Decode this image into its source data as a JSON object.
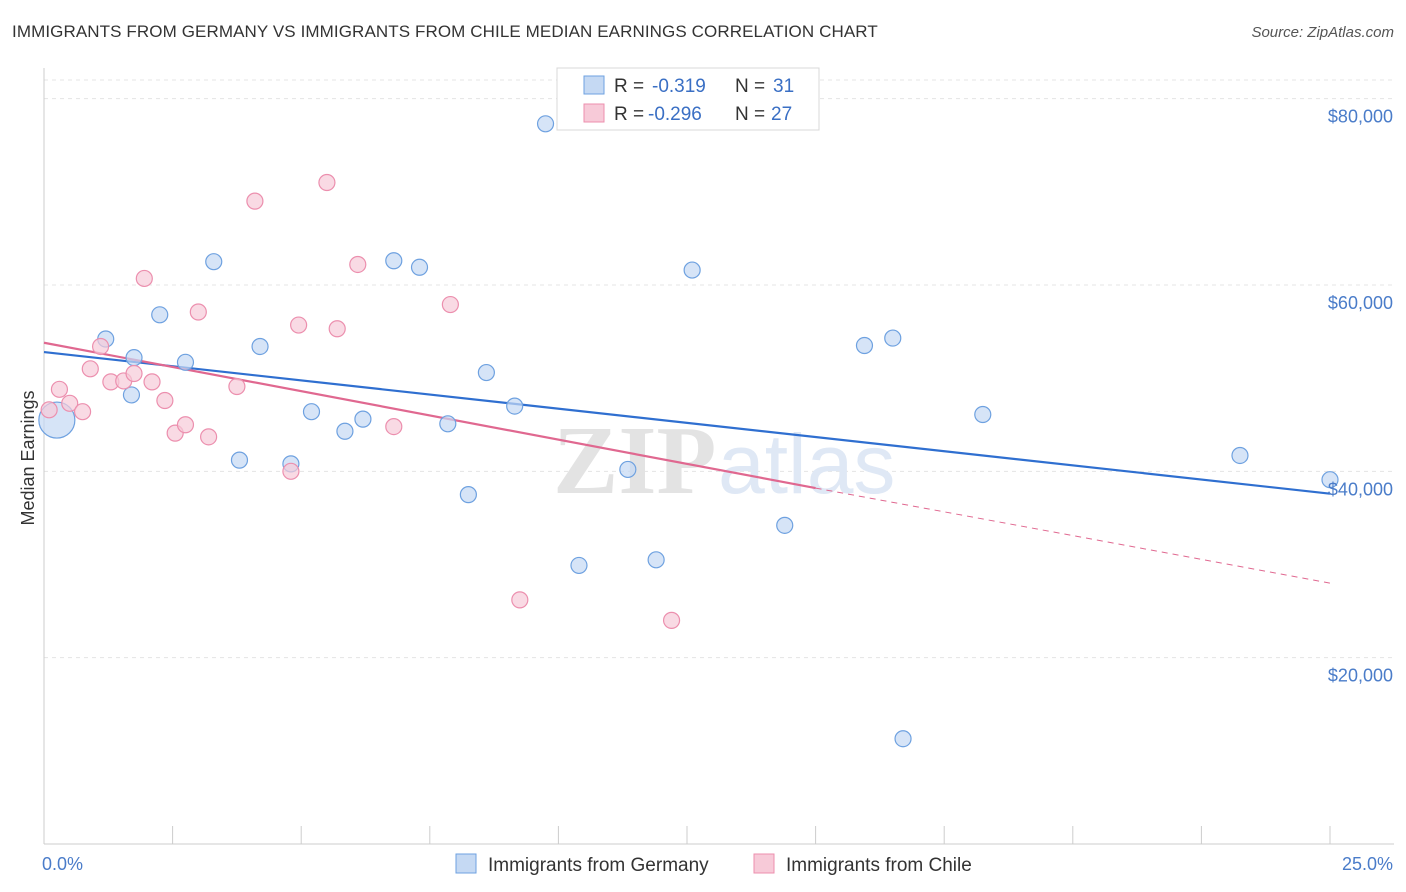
{
  "header": {
    "title": "IMMIGRANTS FROM GERMANY VS IMMIGRANTS FROM CHILE MEDIAN EARNINGS CORRELATION CHART",
    "source": "Source: ZipAtlas.com"
  },
  "watermark": {
    "part1": "ZIP",
    "part2": "atlas"
  },
  "chart_data": {
    "type": "scatter",
    "ylabel": "Median Earnings",
    "xlim": [
      0,
      25
    ],
    "ylim": [
      0,
      82000
    ],
    "x_tick_labels": [
      {
        "value": 0,
        "label": "0.0%"
      },
      {
        "value": 25,
        "label": "25.0%"
      }
    ],
    "x_minor_ticks": [
      0,
      2.5,
      5,
      7.5,
      10,
      12.5,
      15,
      17.5,
      20,
      22.5,
      25
    ],
    "y_ticks": [
      {
        "value": 20000,
        "label": "$20,000"
      },
      {
        "value": 40000,
        "label": "$40,000"
      },
      {
        "value": 60000,
        "label": "$60,000"
      },
      {
        "value": 80000,
        "label": "$80,000"
      }
    ],
    "grid": true,
    "series": [
      {
        "name": "Immigrants from Germany",
        "color": "#6ea1e0",
        "fill": "#c5d9f3",
        "line_color": "#2f6fd0",
        "R": "-0.319",
        "N": "31",
        "trend": {
          "x0": 0,
          "y0": 52800,
          "x1": 25,
          "y1": 37600
        },
        "points": [
          {
            "x": 0.25,
            "y": 45500,
            "big": true
          },
          {
            "x": 1.2,
            "y": 54200
          },
          {
            "x": 1.75,
            "y": 52200
          },
          {
            "x": 1.7,
            "y": 48200
          },
          {
            "x": 2.25,
            "y": 56800
          },
          {
            "x": 2.75,
            "y": 51700
          },
          {
            "x": 3.3,
            "y": 62500
          },
          {
            "x": 3.8,
            "y": 41200
          },
          {
            "x": 4.2,
            "y": 53400
          },
          {
            "x": 4.8,
            "y": 40800
          },
          {
            "x": 5.2,
            "y": 46400
          },
          {
            "x": 5.85,
            "y": 44300
          },
          {
            "x": 6.2,
            "y": 45600
          },
          {
            "x": 6.8,
            "y": 62600
          },
          {
            "x": 7.3,
            "y": 61900
          },
          {
            "x": 7.85,
            "y": 45100
          },
          {
            "x": 8.25,
            "y": 37500
          },
          {
            "x": 8.6,
            "y": 50600
          },
          {
            "x": 9.15,
            "y": 47000
          },
          {
            "x": 9.75,
            "y": 77300
          },
          {
            "x": 10.4,
            "y": 29900
          },
          {
            "x": 11.35,
            "y": 40200
          },
          {
            "x": 11.9,
            "y": 30500
          },
          {
            "x": 12.6,
            "y": 61600
          },
          {
            "x": 14.4,
            "y": 34200
          },
          {
            "x": 15.95,
            "y": 53500
          },
          {
            "x": 16.5,
            "y": 54300
          },
          {
            "x": 16.7,
            "y": 11300
          },
          {
            "x": 18.25,
            "y": 46100
          },
          {
            "x": 23.25,
            "y": 41700
          },
          {
            "x": 25,
            "y": 39100
          }
        ]
      },
      {
        "name": "Immigrants from Chile",
        "color": "#ec8fae",
        "fill": "#f7cad8",
        "line_color": "#e06890",
        "R": "-0.296",
        "N": "27",
        "trend": {
          "x0": 0,
          "y0": 53800,
          "x1": 15,
          "y1": 38200
        },
        "trend_dash": {
          "x0": 15,
          "y0": 38200,
          "x1": 25,
          "y1": 28000
        },
        "points": [
          {
            "x": 0.1,
            "y": 46600
          },
          {
            "x": 0.3,
            "y": 48800
          },
          {
            "x": 0.5,
            "y": 47300
          },
          {
            "x": 0.75,
            "y": 46400
          },
          {
            "x": 0.9,
            "y": 51000
          },
          {
            "x": 1.1,
            "y": 53400
          },
          {
            "x": 1.3,
            "y": 49600
          },
          {
            "x": 1.55,
            "y": 49700
          },
          {
            "x": 1.75,
            "y": 50500
          },
          {
            "x": 1.95,
            "y": 60700
          },
          {
            "x": 2.1,
            "y": 49600
          },
          {
            "x": 2.35,
            "y": 47600
          },
          {
            "x": 2.55,
            "y": 44100
          },
          {
            "x": 2.75,
            "y": 45000
          },
          {
            "x": 3.0,
            "y": 57100
          },
          {
            "x": 3.2,
            "y": 43700
          },
          {
            "x": 3.75,
            "y": 49100
          },
          {
            "x": 4.1,
            "y": 69000
          },
          {
            "x": 4.8,
            "y": 40000
          },
          {
            "x": 4.95,
            "y": 55700
          },
          {
            "x": 5.5,
            "y": 71000
          },
          {
            "x": 5.7,
            "y": 55300
          },
          {
            "x": 6.1,
            "y": 62200
          },
          {
            "x": 6.8,
            "y": 44800
          },
          {
            "x": 7.9,
            "y": 57900
          },
          {
            "x": 9.25,
            "y": 26200
          },
          {
            "x": 12.2,
            "y": 24000
          }
        ]
      }
    ]
  }
}
